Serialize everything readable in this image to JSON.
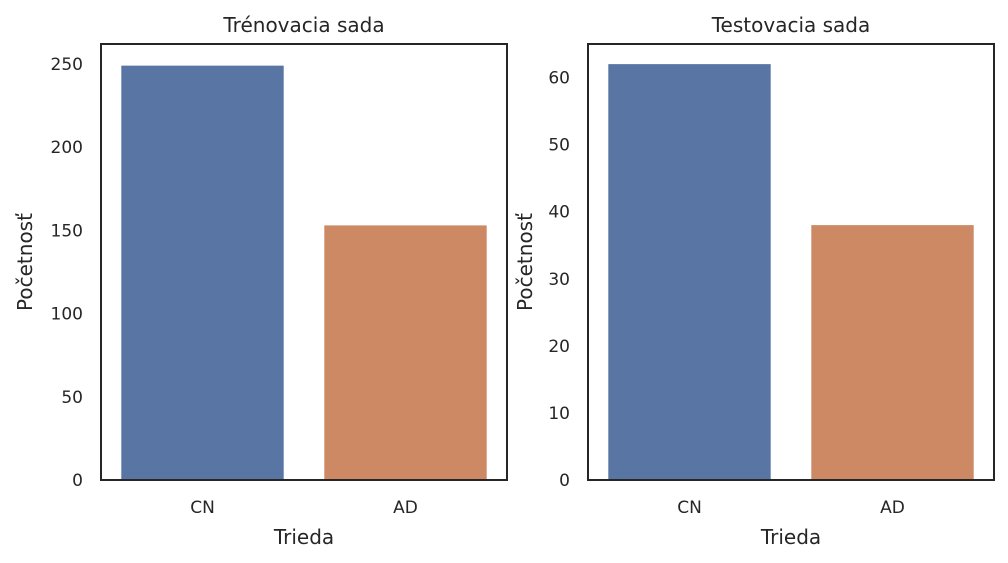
{
  "chart_data": [
    {
      "type": "bar",
      "title": "Trénovacia sada",
      "xlabel": "Trieda",
      "ylabel": "Početnosť",
      "categories": [
        "CN",
        "AD"
      ],
      "values": [
        249,
        153
      ],
      "colors": [
        "#5975a4",
        "#cc8963"
      ],
      "ylim": [
        0,
        262
      ],
      "yticks": [
        0,
        50,
        100,
        150,
        200,
        250
      ],
      "grid": false
    },
    {
      "type": "bar",
      "title": "Testovacia sada",
      "xlabel": "Trieda",
      "ylabel": "Početnosť",
      "categories": [
        "CN",
        "AD"
      ],
      "values": [
        62,
        38
      ],
      "colors": [
        "#5975a4",
        "#cc8963"
      ],
      "ylim": [
        0,
        65
      ],
      "yticks": [
        0,
        10,
        20,
        30,
        40,
        50,
        60
      ],
      "grid": false
    }
  ]
}
